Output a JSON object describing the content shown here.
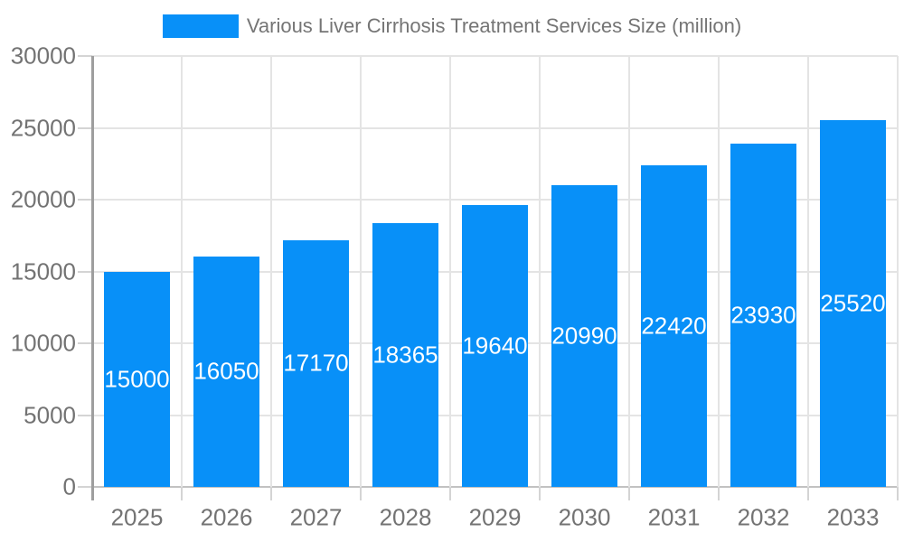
{
  "chart_data": {
    "type": "bar",
    "title": "Various Liver Cirrhosis Treatment Services Size (million)",
    "categories": [
      "2025",
      "2026",
      "2027",
      "2028",
      "2029",
      "2030",
      "2031",
      "2032",
      "2033"
    ],
    "values": [
      15000,
      16050,
      17170,
      18365,
      19640,
      20990,
      22420,
      23930,
      25520
    ],
    "xlabel": "",
    "ylabel": "",
    "ylim": [
      0,
      30000
    ],
    "yticks": [
      0,
      5000,
      10000,
      15000,
      20000,
      25000,
      30000
    ],
    "grid": true,
    "legend_position": "top",
    "bar_label_position": "center"
  },
  "theme": {
    "bar_color": "#0890f8",
    "bar_label_color": "#ffffff",
    "axis_label_color": "#737373",
    "legend_text_color": "#757575",
    "gridline_color": "#e4e4e4",
    "baseline_color": "#c2c2c2",
    "tick_color": "#d4d4d4",
    "axis_line_color": "#9e9e9e",
    "background_color": "#ffffff"
  }
}
